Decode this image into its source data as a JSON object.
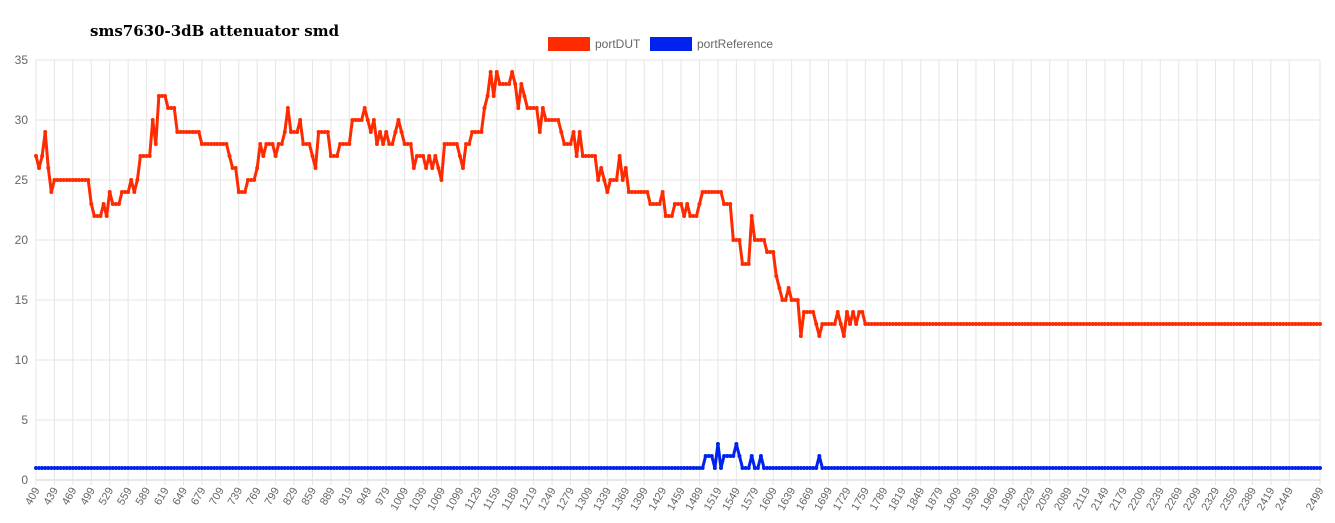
{
  "title": "sms7630-3dB attenuator smd",
  "colors": {
    "portDUT": "#ff2b00",
    "portReference": "#0022ee",
    "grid": "#e5e5e5",
    "tick": "#666666"
  },
  "chart_data": {
    "type": "line",
    "title": "sms7630-3dB attenuator smd",
    "xlabel": "",
    "ylabel": "",
    "ylim": [
      0,
      35
    ],
    "yticks": [
      0,
      5,
      10,
      15,
      20,
      25,
      30,
      35
    ],
    "x_start": 409,
    "x_step": 5,
    "x_end": 2499,
    "x_tick_labels": [
      "409",
      "439",
      "469",
      "499",
      "529",
      "559",
      "589",
      "619",
      "649",
      "679",
      "709",
      "739",
      "769",
      "799",
      "829",
      "859",
      "889",
      "919",
      "949",
      "979",
      "1009",
      "1039",
      "1069",
      "1099",
      "1129",
      "1159",
      "1189",
      "1219",
      "1249",
      "1279",
      "1309",
      "1339",
      "1369",
      "1399",
      "1429",
      "1459",
      "1489",
      "1519",
      "1549",
      "1579",
      "1609",
      "1639",
      "1669",
      "1699",
      "1729",
      "1759",
      "1789",
      "1819",
      "1849",
      "1879",
      "1909",
      "1939",
      "1969",
      "1999",
      "2029",
      "2059",
      "2089",
      "2119",
      "2149",
      "2179",
      "2209",
      "2239",
      "2269",
      "2299",
      "2329",
      "2359",
      "2389",
      "2419",
      "2449",
      "2499"
    ],
    "legend": {
      "position": "top-center",
      "entries": [
        "portDUT",
        "portReference"
      ]
    },
    "grid": true,
    "series": [
      {
        "name": "portDUT",
        "anchors": [
          [
            409,
            27
          ],
          [
            414,
            26
          ],
          [
            419,
            27
          ],
          [
            424,
            29
          ],
          [
            429,
            26
          ],
          [
            434,
            24
          ],
          [
            439,
            25
          ],
          [
            444,
            25
          ],
          [
            449,
            25
          ],
          [
            454,
            25
          ],
          [
            459,
            25
          ],
          [
            464,
            25
          ],
          [
            469,
            25
          ],
          [
            474,
            25
          ],
          [
            479,
            25
          ],
          [
            484,
            25
          ],
          [
            489,
            25
          ],
          [
            494,
            25
          ],
          [
            499,
            23
          ],
          [
            504,
            22
          ],
          [
            509,
            22
          ],
          [
            514,
            22
          ],
          [
            519,
            23
          ],
          [
            524,
            22
          ],
          [
            529,
            24
          ],
          [
            534,
            23
          ],
          [
            539,
            23
          ],
          [
            544,
            23
          ],
          [
            549,
            24
          ],
          [
            554,
            24
          ],
          [
            559,
            24
          ],
          [
            564,
            25
          ],
          [
            569,
            24
          ],
          [
            574,
            25
          ],
          [
            579,
            27
          ],
          [
            584,
            27
          ],
          [
            589,
            27
          ],
          [
            594,
            27
          ],
          [
            599,
            30
          ],
          [
            604,
            28
          ],
          [
            609,
            32
          ],
          [
            614,
            32
          ],
          [
            619,
            32
          ],
          [
            624,
            31
          ],
          [
            629,
            31
          ],
          [
            634,
            31
          ],
          [
            639,
            29
          ],
          [
            644,
            29
          ],
          [
            649,
            29
          ],
          [
            654,
            29
          ],
          [
            659,
            29
          ],
          [
            664,
            29
          ],
          [
            669,
            29
          ],
          [
            674,
            29
          ],
          [
            679,
            28
          ],
          [
            684,
            28
          ],
          [
            689,
            28
          ],
          [
            694,
            28
          ],
          [
            699,
            28
          ],
          [
            704,
            28
          ],
          [
            709,
            28
          ],
          [
            714,
            28
          ],
          [
            719,
            28
          ],
          [
            724,
            27
          ],
          [
            729,
            26
          ],
          [
            734,
            26
          ],
          [
            739,
            24
          ],
          [
            744,
            24
          ],
          [
            749,
            24
          ],
          [
            754,
            25
          ],
          [
            759,
            25
          ],
          [
            764,
            25
          ],
          [
            769,
            26
          ],
          [
            774,
            28
          ],
          [
            779,
            27
          ],
          [
            784,
            28
          ],
          [
            789,
            28
          ],
          [
            794,
            28
          ],
          [
            799,
            27
          ],
          [
            804,
            28
          ],
          [
            809,
            28
          ],
          [
            814,
            29
          ],
          [
            819,
            31
          ],
          [
            824,
            29
          ],
          [
            829,
            29
          ],
          [
            834,
            29
          ],
          [
            839,
            30
          ],
          [
            844,
            28
          ],
          [
            849,
            28
          ],
          [
            854,
            28
          ],
          [
            859,
            27
          ],
          [
            864,
            26
          ],
          [
            869,
            29
          ],
          [
            874,
            29
          ],
          [
            879,
            29
          ],
          [
            884,
            29
          ],
          [
            889,
            27
          ],
          [
            894,
            27
          ],
          [
            899,
            27
          ],
          [
            904,
            28
          ],
          [
            909,
            28
          ],
          [
            914,
            28
          ],
          [
            919,
            28
          ],
          [
            924,
            30
          ],
          [
            929,
            30
          ],
          [
            934,
            30
          ],
          [
            939,
            30
          ],
          [
            944,
            31
          ],
          [
            949,
            30
          ],
          [
            954,
            29
          ],
          [
            959,
            30
          ],
          [
            964,
            28
          ],
          [
            969,
            29
          ],
          [
            974,
            28
          ],
          [
            979,
            29
          ],
          [
            984,
            28
          ],
          [
            989,
            28
          ],
          [
            994,
            29
          ],
          [
            999,
            30
          ],
          [
            1004,
            29
          ],
          [
            1009,
            28
          ],
          [
            1014,
            28
          ],
          [
            1019,
            28
          ],
          [
            1024,
            26
          ],
          [
            1029,
            27
          ],
          [
            1034,
            27
          ],
          [
            1039,
            27
          ],
          [
            1044,
            26
          ],
          [
            1049,
            27
          ],
          [
            1054,
            26
          ],
          [
            1059,
            27
          ],
          [
            1064,
            26
          ],
          [
            1069,
            25
          ],
          [
            1074,
            28
          ],
          [
            1079,
            28
          ],
          [
            1084,
            28
          ],
          [
            1089,
            28
          ],
          [
            1094,
            28
          ],
          [
            1099,
            27
          ],
          [
            1104,
            26
          ],
          [
            1109,
            28
          ],
          [
            1114,
            28
          ],
          [
            1119,
            29
          ],
          [
            1124,
            29
          ],
          [
            1129,
            29
          ],
          [
            1134,
            29
          ],
          [
            1139,
            31
          ],
          [
            1144,
            32
          ],
          [
            1149,
            34
          ],
          [
            1154,
            32
          ],
          [
            1159,
            34
          ],
          [
            1164,
            33
          ],
          [
            1169,
            33
          ],
          [
            1174,
            33
          ],
          [
            1179,
            33
          ],
          [
            1184,
            34
          ],
          [
            1189,
            33
          ],
          [
            1194,
            31
          ],
          [
            1199,
            33
          ],
          [
            1204,
            32
          ],
          [
            1209,
            31
          ],
          [
            1214,
            31
          ],
          [
            1219,
            31
          ],
          [
            1224,
            31
          ],
          [
            1229,
            29
          ],
          [
            1234,
            31
          ],
          [
            1239,
            30
          ],
          [
            1244,
            30
          ],
          [
            1249,
            30
          ],
          [
            1254,
            30
          ],
          [
            1259,
            30
          ],
          [
            1264,
            29
          ],
          [
            1269,
            28
          ],
          [
            1274,
            28
          ],
          [
            1279,
            28
          ],
          [
            1284,
            29
          ],
          [
            1289,
            27
          ],
          [
            1294,
            29
          ],
          [
            1299,
            27
          ],
          [
            1304,
            27
          ],
          [
            1309,
            27
          ],
          [
            1314,
            27
          ],
          [
            1319,
            27
          ],
          [
            1324,
            25
          ],
          [
            1329,
            26
          ],
          [
            1334,
            25
          ],
          [
            1339,
            24
          ],
          [
            1344,
            25
          ],
          [
            1349,
            25
          ],
          [
            1354,
            25
          ],
          [
            1359,
            27
          ],
          [
            1364,
            25
          ],
          [
            1369,
            26
          ],
          [
            1374,
            24
          ],
          [
            1379,
            24
          ],
          [
            1384,
            24
          ],
          [
            1389,
            24
          ],
          [
            1394,
            24
          ],
          [
            1399,
            24
          ],
          [
            1404,
            24
          ],
          [
            1409,
            23
          ],
          [
            1414,
            23
          ],
          [
            1419,
            23
          ],
          [
            1424,
            23
          ],
          [
            1429,
            24
          ],
          [
            1434,
            22
          ],
          [
            1439,
            22
          ],
          [
            1444,
            22
          ],
          [
            1449,
            23
          ],
          [
            1454,
            23
          ],
          [
            1459,
            23
          ],
          [
            1464,
            22
          ],
          [
            1469,
            23
          ],
          [
            1474,
            22
          ],
          [
            1479,
            22
          ],
          [
            1484,
            22
          ],
          [
            1489,
            23
          ],
          [
            1494,
            24
          ],
          [
            1499,
            24
          ],
          [
            1504,
            24
          ],
          [
            1509,
            24
          ],
          [
            1514,
            24
          ],
          [
            1519,
            24
          ],
          [
            1524,
            24
          ],
          [
            1529,
            23
          ],
          [
            1534,
            23
          ],
          [
            1539,
            23
          ],
          [
            1544,
            20
          ],
          [
            1549,
            20
          ],
          [
            1554,
            20
          ],
          [
            1559,
            18
          ],
          [
            1564,
            18
          ],
          [
            1569,
            18
          ],
          [
            1574,
            22
          ],
          [
            1579,
            20
          ],
          [
            1584,
            20
          ],
          [
            1589,
            20
          ],
          [
            1594,
            20
          ],
          [
            1599,
            19
          ],
          [
            1604,
            19
          ],
          [
            1609,
            19
          ],
          [
            1614,
            17
          ],
          [
            1619,
            16
          ],
          [
            1624,
            15
          ],
          [
            1629,
            15
          ],
          [
            1634,
            16
          ],
          [
            1639,
            15
          ],
          [
            1644,
            15
          ],
          [
            1649,
            15
          ],
          [
            1654,
            12
          ],
          [
            1659,
            14
          ],
          [
            1664,
            14
          ],
          [
            1669,
            14
          ],
          [
            1674,
            14
          ],
          [
            1679,
            13
          ],
          [
            1684,
            12
          ],
          [
            1689,
            13
          ],
          [
            1694,
            13
          ],
          [
            1699,
            13
          ],
          [
            1704,
            13
          ],
          [
            1709,
            13
          ],
          [
            1714,
            14
          ],
          [
            1719,
            13
          ],
          [
            1724,
            12
          ],
          [
            1729,
            14
          ],
          [
            1734,
            13
          ],
          [
            1739,
            14
          ],
          [
            1744,
            13
          ],
          [
            1749,
            14
          ],
          [
            1754,
            14
          ],
          [
            1759,
            13
          ]
        ]
      },
      {
        "name": "portReference",
        "anchors": [
          [
            409,
            1
          ],
          [
            1494,
            1
          ],
          [
            1499,
            2
          ],
          [
            1504,
            2
          ],
          [
            1509,
            2
          ],
          [
            1514,
            1
          ],
          [
            1519,
            3
          ],
          [
            1524,
            1
          ],
          [
            1529,
            2
          ],
          [
            1534,
            2
          ],
          [
            1539,
            2
          ],
          [
            1544,
            2
          ],
          [
            1549,
            3
          ],
          [
            1554,
            2
          ],
          [
            1559,
            1
          ],
          [
            1564,
            1
          ],
          [
            1569,
            1
          ],
          [
            1574,
            2
          ],
          [
            1579,
            1
          ],
          [
            1584,
            1
          ],
          [
            1589,
            2
          ],
          [
            1594,
            1
          ],
          [
            1599,
            1
          ],
          [
            1679,
            1
          ],
          [
            1684,
            2
          ],
          [
            1689,
            1
          ],
          [
            1759,
            1
          ]
        ]
      }
    ]
  }
}
